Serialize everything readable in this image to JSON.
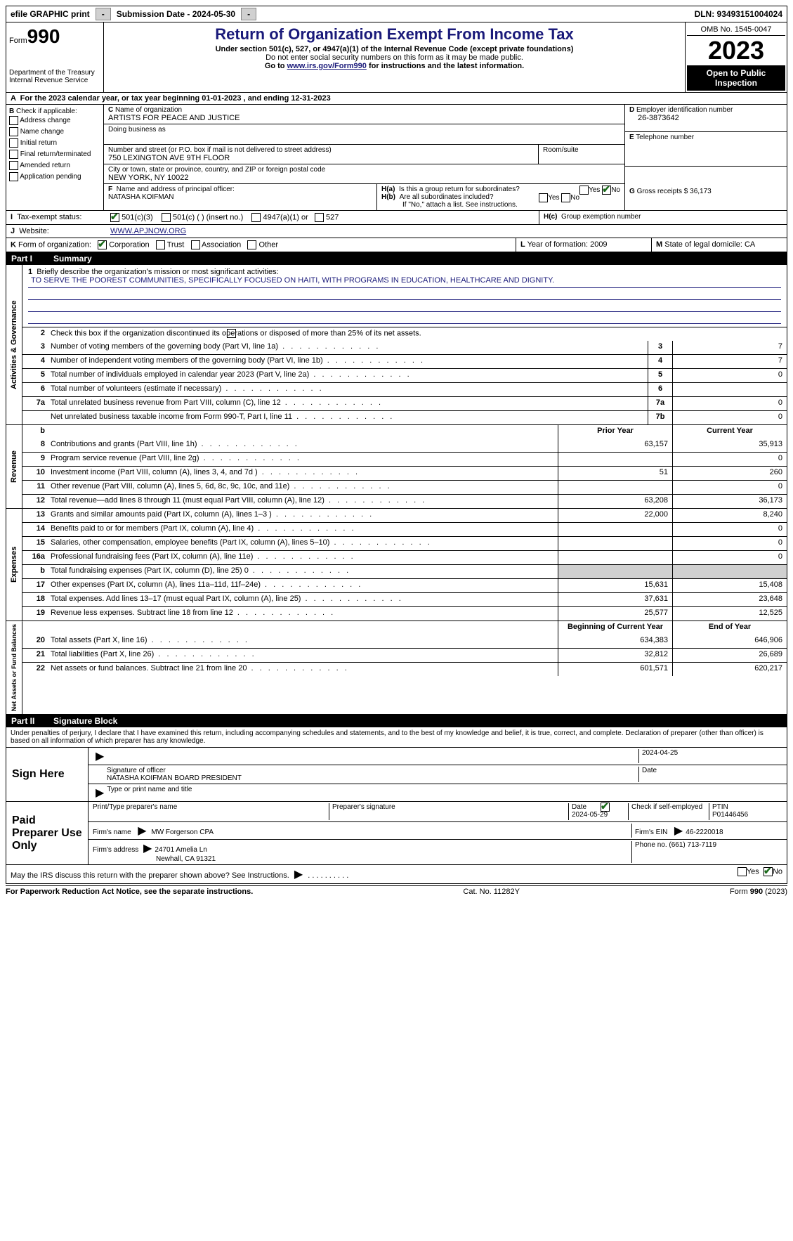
{
  "topbar": {
    "efile": "efile GRAPHIC print",
    "submission": "Submission Date - 2024-05-30",
    "dln": "DLN: 93493151004024"
  },
  "header": {
    "form_label": "Form",
    "form_num": "990",
    "dept": "Department of the Treasury\nInternal Revenue Service",
    "title": "Return of Organization Exempt From Income Tax",
    "sub1": "Under section 501(c), 527, or 4947(a)(1) of the Internal Revenue Code (except private foundations)",
    "sub2": "Do not enter social security numbers on this form as it may be made public.",
    "sub3_pre": "Go to ",
    "sub3_link": "www.irs.gov/Form990",
    "sub3_post": " for instructions and the latest information.",
    "omb": "OMB No. 1545-0047",
    "year": "2023",
    "open": "Open to Public Inspection"
  },
  "rowA": "For the 2023 calendar year, or tax year beginning 01-01-2023   , and ending 12-31-2023",
  "boxB": {
    "title": "Check if applicable:",
    "items": [
      "Address change",
      "Name change",
      "Initial return",
      "Final return/terminated",
      "Amended return",
      "Application pending"
    ]
  },
  "boxC": {
    "name_label": "Name of organization",
    "name": "ARTISTS FOR PEACE AND JUSTICE",
    "dba_label": "Doing business as",
    "dba": "",
    "street_label": "Number and street (or P.O. box if mail is not delivered to street address)",
    "street": "750 LEXINGTON AVE 9TH FLOOR",
    "room_label": "Room/suite",
    "city_label": "City or town, state or province, country, and ZIP or foreign postal code",
    "city": "NEW YORK, NY  10022",
    "officer_label": "Name and address of principal officer:",
    "officer": "NATASHA KOIFMAN"
  },
  "boxD": {
    "label": "Employer identification number",
    "val": "26-3873642"
  },
  "boxE": {
    "label": "Telephone number",
    "val": ""
  },
  "boxG": {
    "label": "Gross receipts $",
    "val": "36,173"
  },
  "boxH": {
    "a": "Is this a group return for subordinates?",
    "b": "Are all subordinates included?",
    "note": "If \"No,\" attach a list. See instructions.",
    "c": "Group exemption number"
  },
  "boxI": {
    "label": "Tax-exempt status:",
    "opts": [
      "501(c)(3)",
      "501(c) (  ) (insert no.)",
      "4947(a)(1) or",
      "527"
    ]
  },
  "boxJ": {
    "label": "Website:",
    "val": "WWW.APJNOW.ORG"
  },
  "boxK": {
    "label": "Form of organization:",
    "opts": [
      "Corporation",
      "Trust",
      "Association",
      "Other"
    ]
  },
  "boxL": {
    "label": "Year of formation:",
    "val": "2009"
  },
  "boxM": {
    "label": "State of legal domicile:",
    "val": "CA"
  },
  "part1": {
    "num": "Part I",
    "title": "Summary"
  },
  "summary": {
    "q1": "Briefly describe the organization's mission or most significant activities:",
    "mission": "TO SERVE THE POOREST COMMUNITIES, SPECIFICALLY FOCUSED ON HAITI, WITH PROGRAMS IN EDUCATION, HEALTHCARE AND DIGNITY.",
    "q2": "Check this box      if the organization discontinued its operations or disposed of more than 25% of its net assets.",
    "lines_gov": [
      {
        "n": "3",
        "t": "Number of voting members of the governing body (Part VI, line 1a)",
        "box": "3",
        "v": "7"
      },
      {
        "n": "4",
        "t": "Number of independent voting members of the governing body (Part VI, line 1b)",
        "box": "4",
        "v": "7"
      },
      {
        "n": "5",
        "t": "Total number of individuals employed in calendar year 2023 (Part V, line 2a)",
        "box": "5",
        "v": "0"
      },
      {
        "n": "6",
        "t": "Total number of volunteers (estimate if necessary)",
        "box": "6",
        "v": ""
      },
      {
        "n": "7a",
        "t": "Total unrelated business revenue from Part VIII, column (C), line 12",
        "box": "7a",
        "v": "0"
      },
      {
        "n": "",
        "t": "Net unrelated business taxable income from Form 990-T, Part I, line 11",
        "box": "7b",
        "v": "0"
      }
    ],
    "head_prior": "Prior Year",
    "head_current": "Current Year",
    "lines_rev": [
      {
        "n": "8",
        "t": "Contributions and grants (Part VIII, line 1h)",
        "p": "63,157",
        "c": "35,913"
      },
      {
        "n": "9",
        "t": "Program service revenue (Part VIII, line 2g)",
        "p": "",
        "c": "0"
      },
      {
        "n": "10",
        "t": "Investment income (Part VIII, column (A), lines 3, 4, and 7d )",
        "p": "51",
        "c": "260"
      },
      {
        "n": "11",
        "t": "Other revenue (Part VIII, column (A), lines 5, 6d, 8c, 9c, 10c, and 11e)",
        "p": "",
        "c": "0"
      },
      {
        "n": "12",
        "t": "Total revenue—add lines 8 through 11 (must equal Part VIII, column (A), line 12)",
        "p": "63,208",
        "c": "36,173"
      }
    ],
    "lines_exp": [
      {
        "n": "13",
        "t": "Grants and similar amounts paid (Part IX, column (A), lines 1–3 )",
        "p": "22,000",
        "c": "8,240"
      },
      {
        "n": "14",
        "t": "Benefits paid to or for members (Part IX, column (A), line 4)",
        "p": "",
        "c": "0"
      },
      {
        "n": "15",
        "t": "Salaries, other compensation, employee benefits (Part IX, column (A), lines 5–10)",
        "p": "",
        "c": "0"
      },
      {
        "n": "16a",
        "t": "Professional fundraising fees (Part IX, column (A), line 11e)",
        "p": "",
        "c": "0"
      },
      {
        "n": "b",
        "t": "Total fundraising expenses (Part IX, column (D), line 25) 0",
        "p": "shade",
        "c": "shade"
      },
      {
        "n": "17",
        "t": "Other expenses (Part IX, column (A), lines 11a–11d, 11f–24e)",
        "p": "15,631",
        "c": "15,408"
      },
      {
        "n": "18",
        "t": "Total expenses. Add lines 13–17 (must equal Part IX, column (A), line 25)",
        "p": "37,631",
        "c": "23,648"
      },
      {
        "n": "19",
        "t": "Revenue less expenses. Subtract line 18 from line 12",
        "p": "25,577",
        "c": "12,525"
      }
    ],
    "head_begin": "Beginning of Current Year",
    "head_end": "End of Year",
    "lines_net": [
      {
        "n": "20",
        "t": "Total assets (Part X, line 16)",
        "p": "634,383",
        "c": "646,906"
      },
      {
        "n": "21",
        "t": "Total liabilities (Part X, line 26)",
        "p": "32,812",
        "c": "26,689"
      },
      {
        "n": "22",
        "t": "Net assets or fund balances. Subtract line 21 from line 20",
        "p": "601,571",
        "c": "620,217"
      }
    ],
    "side_gov": "Activities & Governance",
    "side_rev": "Revenue",
    "side_exp": "Expenses",
    "side_net": "Net Assets or Fund Balances"
  },
  "part2": {
    "num": "Part II",
    "title": "Signature Block"
  },
  "perjury": "Under penalties of perjury, I declare that I have examined this return, including accompanying schedules and statements, and to the best of my knowledge and belief, it is true, correct, and complete. Declaration of preparer (other than officer) is based on all information of which preparer has any knowledge.",
  "sign": {
    "here": "Sign Here",
    "date": "2024-04-25",
    "sig_label": "Signature of officer",
    "officer": "NATASHA KOIFMAN  BOARD PRESIDENT",
    "type_label": "Type or print name and title",
    "date_label": "Date"
  },
  "preparer": {
    "label": "Paid Preparer Use Only",
    "print_label": "Print/Type preparer's name",
    "sig_label": "Preparer's signature",
    "date_label": "Date",
    "date": "2024-05-29",
    "check_label": "Check        if self-employed",
    "ptin_label": "PTIN",
    "ptin": "P01446456",
    "firm_name_label": "Firm's name",
    "firm_name": "MW Forgerson CPA",
    "firm_ein_label": "Firm's EIN",
    "firm_ein": "46-2220018",
    "firm_addr_label": "Firm's address",
    "firm_addr1": "24701 Amelia Ln",
    "firm_addr2": "Newhall, CA  91321",
    "phone_label": "Phone no.",
    "phone": "(661) 713-7119"
  },
  "discuss": "May the IRS discuss this return with the preparer shown above? See Instructions.",
  "footer": {
    "left": "For Paperwork Reduction Act Notice, see the separate instructions.",
    "mid": "Cat. No. 11282Y",
    "right_pre": "Form ",
    "right_bold": "990",
    "right_post": " (2023)"
  },
  "yn": {
    "yes": "Yes",
    "no": "No"
  }
}
